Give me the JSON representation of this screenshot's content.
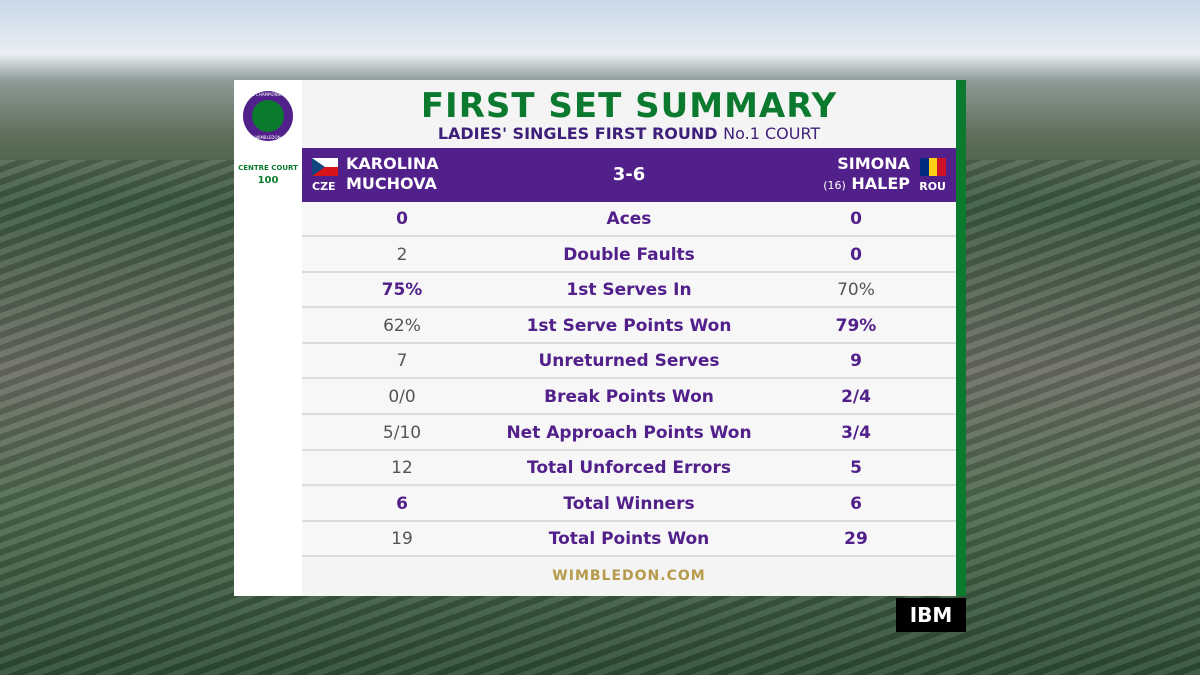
{
  "header": {
    "title": "FIRST SET SUMMARY",
    "subtitle": "LADIES' SINGLES FIRST ROUND",
    "court": "No.1 COURT"
  },
  "logos": {
    "ring_top": "THE CHAMPIONSHIPS",
    "ring_bottom": "WIMBLEDON",
    "centre_court": "CENTRE COURT",
    "centre_court_year": "100"
  },
  "match": {
    "player1": {
      "first": "KAROLINA",
      "last": "MUCHOVA",
      "country": "CZE"
    },
    "score": "3-6",
    "player2": {
      "first": "SIMONA",
      "last": "HALEP",
      "seed": "(16)",
      "country": "ROU"
    }
  },
  "stats": [
    {
      "left": "0",
      "label": "Aces",
      "right": "0",
      "highlight": "both"
    },
    {
      "left": "2",
      "label": "Double Faults",
      "right": "0",
      "highlight": "right"
    },
    {
      "left": "75%",
      "label": "1st Serves In",
      "right": "70%",
      "highlight": "left"
    },
    {
      "left": "62%",
      "label": "1st Serve Points Won",
      "right": "79%",
      "highlight": "right"
    },
    {
      "left": "7",
      "label": "Unreturned Serves",
      "right": "9",
      "highlight": "right"
    },
    {
      "left": "0/0",
      "label": "Break Points Won",
      "right": "2/4",
      "highlight": "right"
    },
    {
      "left": "5/10",
      "label": "Net Approach Points Won",
      "right": "3/4",
      "highlight": "right"
    },
    {
      "left": "12",
      "label": "Total Unforced Errors",
      "right": "5",
      "highlight": "right"
    },
    {
      "left": "6",
      "label": "Total Winners",
      "right": "6",
      "highlight": "both"
    },
    {
      "left": "19",
      "label": "Total Points Won",
      "right": "29",
      "highlight": "right"
    }
  ],
  "footer": "WIMBLEDON.COM",
  "sponsor": "IBM"
}
